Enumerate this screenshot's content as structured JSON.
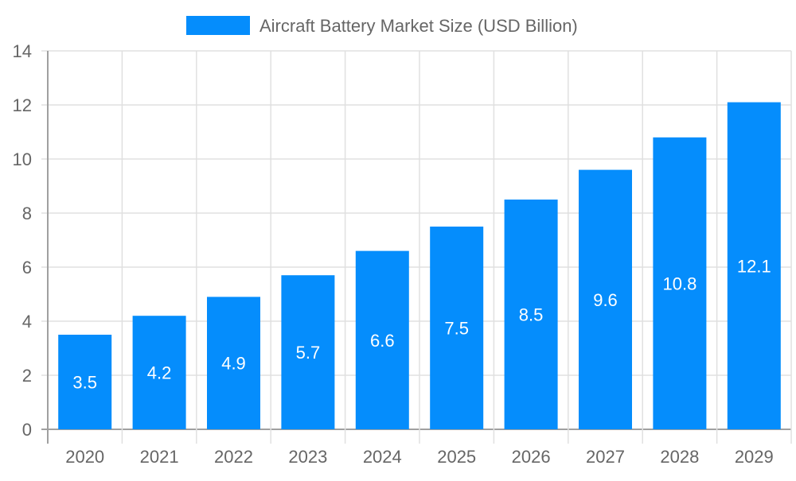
{
  "chart_data": {
    "type": "bar",
    "title": "",
    "legend": {
      "label": "Aircraft Battery Market Size (USD Billion)",
      "placement": "top"
    },
    "categories": [
      "2020",
      "2021",
      "2022",
      "2023",
      "2024",
      "2025",
      "2026",
      "2027",
      "2028",
      "2029"
    ],
    "series": [
      {
        "name": "Aircraft Battery Market Size (USD Billion)",
        "values": [
          3.5,
          4.2,
          4.9,
          5.7,
          6.6,
          7.5,
          8.5,
          9.6,
          10.8,
          12.1
        ]
      }
    ],
    "xlabel": "",
    "ylabel": "",
    "ylim": [
      0,
      14
    ],
    "yticks": [
      0,
      2,
      4,
      6,
      8,
      10,
      12,
      14
    ],
    "grid": true,
    "data_labels": true,
    "colors": {
      "bar": "#058DFC",
      "grid": "#e0e0e0",
      "axis": "#a0a0a0",
      "text": "#666666",
      "label": "#ffffff"
    }
  }
}
